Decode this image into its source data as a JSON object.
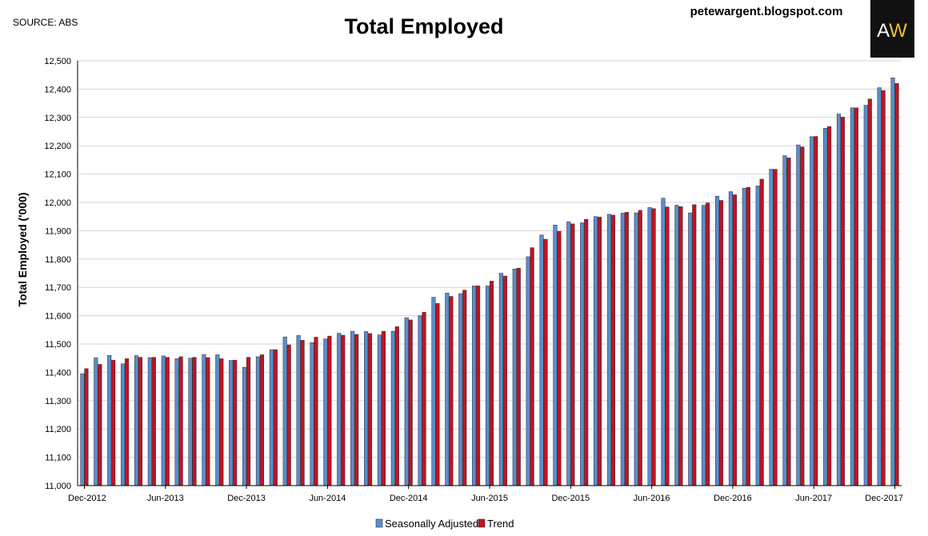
{
  "header": {
    "source": "SOURCE: ABS",
    "title": "Total Employed",
    "site": "petewargent.blogspot.com",
    "logo": "AW"
  },
  "colors": {
    "seasonally_adjusted": "#5b8ec9",
    "trend": "#c0141e",
    "logo_bg": "#111111",
    "logo_gold": "#f2c12e"
  },
  "chart_data": {
    "type": "bar",
    "title": "Total Employed",
    "ylabel": "Total Employed ('000)",
    "xlabel": "",
    "ylim": [
      11000,
      12500
    ],
    "yticks": [
      "11,000",
      "11,100",
      "11,200",
      "11,300",
      "11,400",
      "11,500",
      "11,600",
      "11,700",
      "11,800",
      "11,900",
      "12,000",
      "12,100",
      "12,200",
      "12,300",
      "12,400",
      "12,500"
    ],
    "xtick_labels": [
      "Dec-2012",
      "Jun-2013",
      "Dec-2013",
      "Jun-2014",
      "Dec-2014",
      "Jun-2015",
      "Dec-2015",
      "Jun-2016",
      "Dec-2016",
      "Jun-2017",
      "Dec-2017"
    ],
    "categories": [
      "Dec-2012",
      "Jan-2013",
      "Feb-2013",
      "Mar-2013",
      "Apr-2013",
      "May-2013",
      "Jun-2013",
      "Jul-2013",
      "Aug-2013",
      "Sep-2013",
      "Oct-2013",
      "Nov-2013",
      "Dec-2013",
      "Jan-2014",
      "Feb-2014",
      "Mar-2014",
      "Apr-2014",
      "May-2014",
      "Jun-2014",
      "Jul-2014",
      "Aug-2014",
      "Sep-2014",
      "Oct-2014",
      "Nov-2014",
      "Dec-2014",
      "Jan-2015",
      "Feb-2015",
      "Mar-2015",
      "Apr-2015",
      "May-2015",
      "Jun-2015",
      "Jul-2015",
      "Aug-2015",
      "Sep-2015",
      "Oct-2015",
      "Nov-2015",
      "Dec-2015",
      "Jan-2016",
      "Feb-2016",
      "Mar-2016",
      "Apr-2016",
      "May-2016",
      "Jun-2016",
      "Jul-2016",
      "Aug-2016",
      "Sep-2016",
      "Oct-2016",
      "Nov-2016",
      "Dec-2016",
      "Jan-2017",
      "Feb-2017",
      "Mar-2017",
      "Apr-2017",
      "May-2017",
      "Jun-2017",
      "Jul-2017",
      "Aug-2017",
      "Sep-2017",
      "Oct-2017",
      "Nov-2017",
      "Dec-2017"
    ],
    "series": [
      {
        "name": "Seasonally Adjusted",
        "color": "#5b8ec9",
        "values": [
          11395,
          11451,
          11460,
          11430,
          11459,
          11452,
          11458,
          11448,
          11450,
          11463,
          11462,
          11442,
          11418,
          11455,
          11480,
          11525,
          11530,
          11505,
          11518,
          11538,
          11545,
          11544,
          11532,
          11545,
          11593,
          11600,
          11665,
          11680,
          11678,
          11705,
          11705,
          11750,
          11765,
          11808,
          11885,
          11920,
          11932,
          11928,
          11950,
          11958,
          11962,
          11963,
          11982,
          12015,
          11990,
          11963,
          11990,
          12022,
          12038,
          12050,
          12058,
          12117,
          12165,
          12203,
          12232,
          12262,
          12312,
          12334,
          12343,
          12405,
          12440
        ]
      },
      {
        "name": "Trend",
        "color": "#c0141e",
        "values": [
          11413,
          11428,
          11443,
          11448,
          11453,
          11453,
          11453,
          11455,
          11453,
          11452,
          11448,
          11443,
          11453,
          11462,
          11480,
          11497,
          11513,
          11524,
          11528,
          11531,
          11534,
          11537,
          11545,
          11561,
          11585,
          11612,
          11643,
          11668,
          11690,
          11705,
          11722,
          11740,
          11768,
          11840,
          11870,
          11898,
          11924,
          11940,
          11948,
          11955,
          11965,
          11972,
          11978,
          11984,
          11985,
          11992,
          11998,
          12007,
          12027,
          12053,
          12082,
          12117,
          12157,
          12196,
          12233,
          12268,
          12301,
          12334,
          12365,
          12395,
          12420
        ]
      }
    ],
    "legend": [
      "Seasonally Adjusted",
      "Trend"
    ],
    "legend_position": "bottom",
    "grid": true
  }
}
